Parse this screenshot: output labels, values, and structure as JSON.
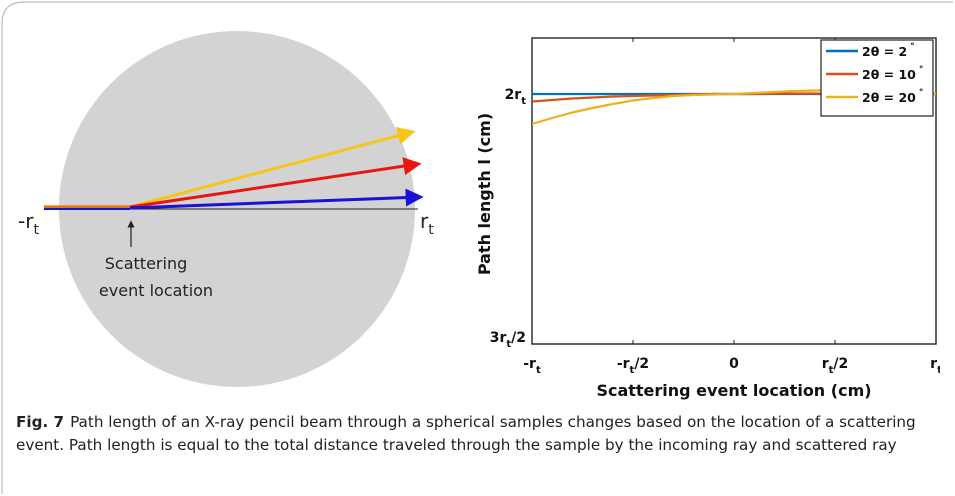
{
  "diagram": {
    "neg_rt_label": "-r",
    "neg_rt_sub": "t",
    "pos_rt_label": "r",
    "pos_rt_sub": "t",
    "annotation_line1": "Scattering",
    "annotation_line2": "event location",
    "colors": {
      "sphere": "#d3d3d3",
      "ray_20": "#f5c518",
      "ray_10": "#e8160c",
      "ray_2": "#1a12d4",
      "incoming": "#e8760c"
    }
  },
  "chart_data": {
    "type": "line",
    "xlabel": "Scattering event location (cm)",
    "ylabel": "Path length l (cm)",
    "xlim": [
      -1,
      1
    ],
    "ylim": [
      1.5,
      2.5
    ],
    "grid": false,
    "legend_position": "top-right",
    "x_ticks": [
      {
        "value": -1,
        "main": "-r",
        "sub": "t",
        "tail": ""
      },
      {
        "value": -0.5,
        "main": "-r",
        "sub": "t",
        "tail": "/2"
      },
      {
        "value": 0,
        "main": "0",
        "sub": "",
        "tail": ""
      },
      {
        "value": 0.5,
        "main": "r",
        "sub": "t",
        "tail": "/2"
      },
      {
        "value": 1,
        "main": "r",
        "sub": "t",
        "tail": ""
      }
    ],
    "y_ticks": [
      {
        "value": 2.0,
        "main": "2r",
        "sub": "t",
        "tail": ""
      },
      {
        "value": 1.5,
        "main": "3r",
        "sub": "t",
        "tail": "/2"
      }
    ],
    "x": [
      -1,
      -0.9,
      -0.8,
      -0.7,
      -0.6,
      -0.5,
      -0.4,
      -0.3,
      -0.2,
      -0.1,
      0,
      0.1,
      0.2,
      0.3,
      0.4,
      0.5,
      0.6,
      0.7,
      0.8,
      0.9,
      1
    ],
    "series": [
      {
        "name": "2θ = 2",
        "theta_label": "2θ = 2",
        "degree_mark": "°",
        "color": "#0072bd",
        "values": [
          2.0,
          2.0,
          2.0,
          2.0,
          2.0,
          2.0,
          2.0,
          2.0,
          2.0,
          2.0,
          2.0,
          2.0,
          2.0,
          2.0,
          2.0,
          2.0,
          2.0,
          2.0,
          2.0,
          2.0,
          2.0
        ]
      },
      {
        "name": "2θ = 10",
        "theta_label": "2θ = 10",
        "degree_mark": "°",
        "color": "#d95319",
        "values": [
          1.985,
          1.988,
          1.991,
          1.993,
          1.995,
          1.996,
          1.997,
          1.998,
          1.999,
          2.0,
          2.0,
          2.0,
          2.001,
          2.001,
          2.001,
          2.001,
          2.001,
          2.001,
          2.001,
          2.001,
          2.0
        ]
      },
      {
        "name": "2θ = 20",
        "theta_label": "2θ = 20",
        "degree_mark": "°",
        "color": "#edb120",
        "values": [
          1.94,
          1.952,
          1.963,
          1.972,
          1.98,
          1.987,
          1.992,
          1.996,
          1.998,
          1.999,
          2.0,
          2.002,
          2.004,
          2.006,
          2.007,
          2.008,
          2.008,
          2.007,
          2.005,
          2.003,
          2.0
        ]
      }
    ]
  },
  "caption": {
    "label": "Fig. 7",
    "text": "Path length of an X-ray pencil beam through a spherical samples changes based on the location of a scattering event. Path length is equal to the total distance traveled through the sample by the incoming ray and scattered ray"
  }
}
